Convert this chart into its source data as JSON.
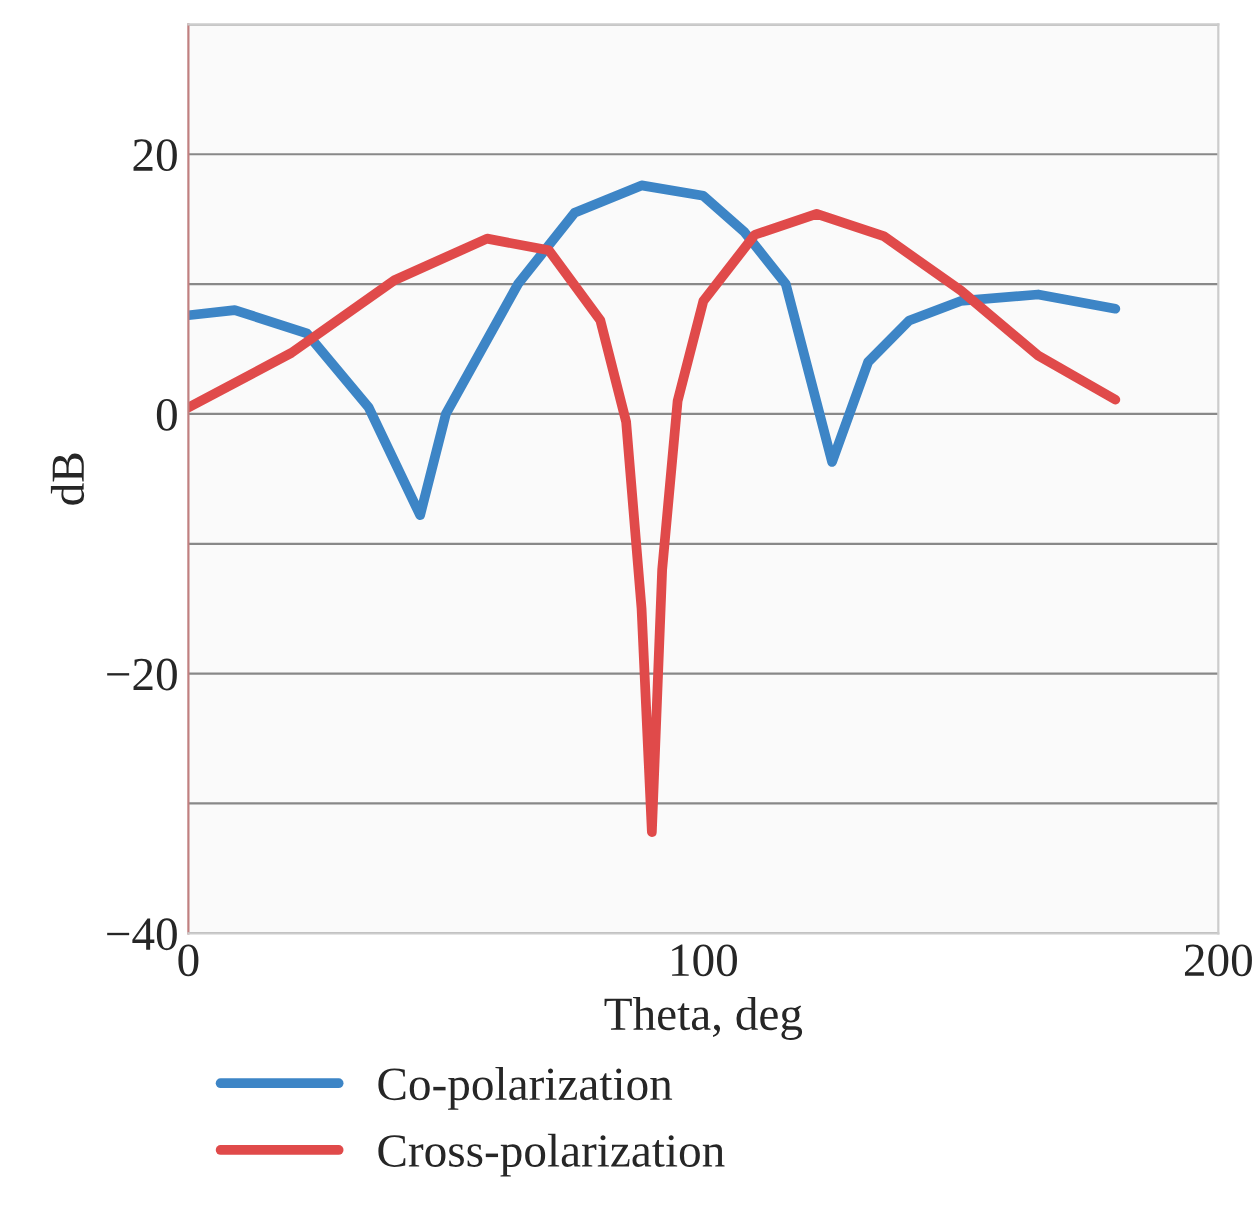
{
  "chart_data": {
    "type": "line",
    "xlabel": "Theta, deg",
    "ylabel": "dB",
    "xlim": [
      0,
      200
    ],
    "xticks": [
      0,
      100,
      200
    ],
    "ylim": [
      -40,
      30
    ],
    "yticks": [
      {
        "value": -40,
        "label": "−40"
      },
      {
        "value": -30,
        "label": null
      },
      {
        "value": -20,
        "label": "−20"
      },
      {
        "value": -10,
        "label": null
      },
      0,
      {
        "value": 10,
        "label": null
      },
      20,
      {
        "value": 30,
        "label": null
      }
    ],
    "grid": "y",
    "legend": "bottom",
    "line_style": "solid",
    "series": [
      {
        "name": "Co-polarization",
        "color": "#3d85c6",
        "x": [
          0,
          9,
          23,
          35,
          45,
          50,
          64,
          75,
          88,
          100,
          108,
          116,
          125,
          132,
          140,
          150,
          165,
          180
        ],
        "values": [
          7.6,
          8.0,
          6.2,
          0.5,
          -7.8,
          0,
          10,
          15.5,
          17.6,
          16.8,
          14,
          10,
          -3.7,
          4,
          7.2,
          8.7,
          9.2,
          8.1
        ]
      },
      {
        "name": "Cross-polarization",
        "color": "#e04a4a",
        "x": [
          0,
          20,
          40,
          58,
          70,
          80,
          85,
          88,
          90,
          92,
          95,
          100,
          110,
          122,
          135,
          150,
          165,
          180
        ],
        "values": [
          0.5,
          4.7,
          10.3,
          13.5,
          12.6,
          7.2,
          -0.6,
          -15,
          -32.2,
          -12,
          1,
          8.7,
          13.8,
          15.4,
          13.7,
          9.5,
          4.5,
          1.1
        ]
      }
    ]
  }
}
